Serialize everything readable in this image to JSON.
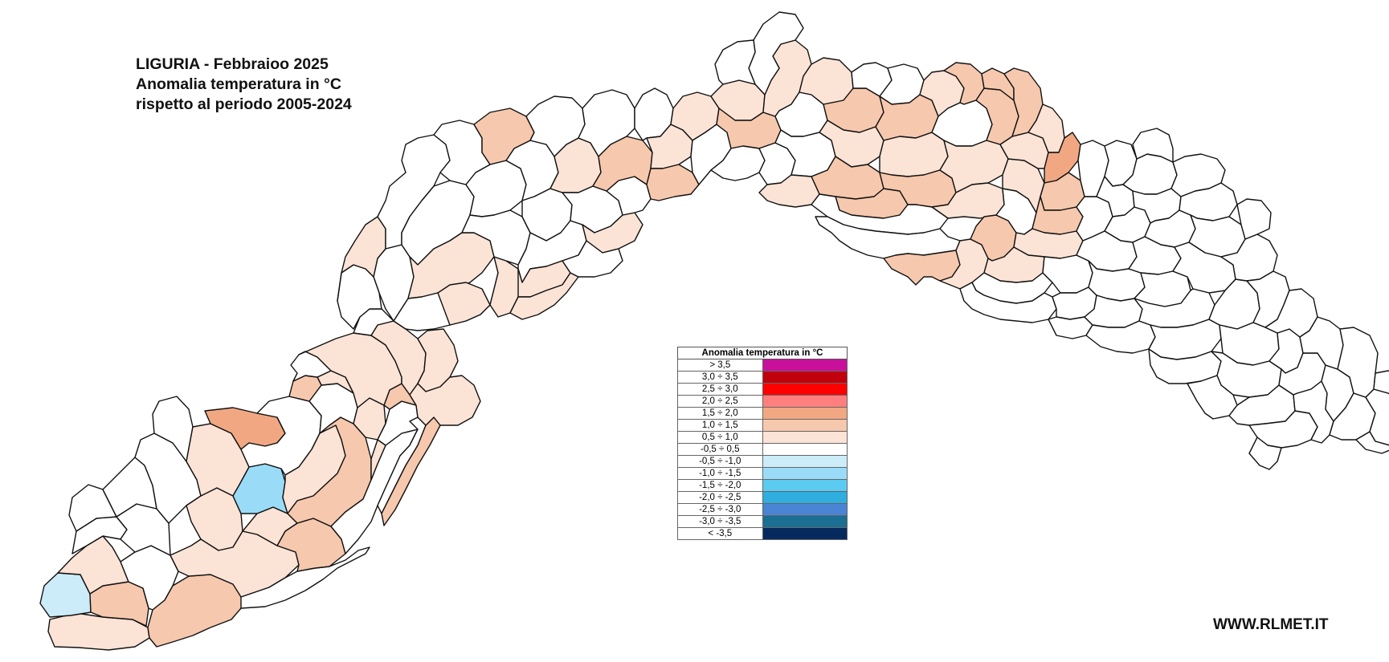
{
  "title": {
    "line1": "LIGURIA - Febbraioo 2025",
    "line2": "Anomalia temperatura in °C",
    "line3": "rispetto al periodo 2005-2024"
  },
  "legend": {
    "header": "Anomalia temperatura in °C",
    "classes": [
      {
        "label": "> 3,5",
        "color": "#c8109c"
      },
      {
        "label": "3,0 ÷ 3,5",
        "color": "#c0000c"
      },
      {
        "label": "2,5 ÷ 3,0",
        "color": "#ff0000"
      },
      {
        "label": "2,0 ÷ 2,5",
        "color": "#ff7f7f"
      },
      {
        "label": "1,5 ÷ 2,0",
        "color": "#f1a882"
      },
      {
        "label": "1,0 ÷ 1,5",
        "color": "#f6c8ad"
      },
      {
        "label": "0,5 ÷ 1,0",
        "color": "#fbe3d6"
      },
      {
        "label": "-0,5 ÷ 0,5",
        "color": "#ffffff"
      },
      {
        "label": "-0,5 ÷ -1,0",
        "color": "#ccecfa"
      },
      {
        "label": "-1,0 ÷ -1,5",
        "color": "#9adcf8"
      },
      {
        "label": "-1,5 ÷ -2,0",
        "color": "#5ccbf2"
      },
      {
        "label": "-2,0 ÷ -2,5",
        "color": "#2faedf"
      },
      {
        "label": "-2,5 ÷ -3,0",
        "color": "#4a84d4"
      },
      {
        "label": "-3,0 ÷ -3,5",
        "color": "#1a6f92"
      },
      {
        "label": "< -3,5",
        "color": "#062a5e"
      }
    ]
  },
  "site": "WWW.RLMET.IT",
  "class_colors": {
    "neutral": "#ffffff",
    "c05_10": "#fbe3d6",
    "c10_15": "#f6c8ad",
    "c15_20": "#f1a882",
    "cm05_10": "#ccecfa",
    "cm10_15": "#9adcf8"
  },
  "municipality_anomaly_classes": [
    "c05_10",
    "cm05_10",
    "c10_15",
    "c05_10",
    "neutral",
    "neutral",
    "neutral",
    "neutral",
    "neutral",
    "neutral",
    "neutral",
    "c05_10",
    "c10_15",
    "c05_10",
    "neutral",
    "c10_15",
    "c05_10",
    "c05_10",
    "cm10_15",
    "c15_20",
    "neutral",
    "c05_10",
    "c10_15",
    "neutral",
    "c05_10",
    "c05_10",
    "c10_15",
    "neutral",
    "neutral",
    "c10_15",
    "c05_10",
    "neutral",
    "c10_15",
    "neutral",
    "c05_10",
    "c05_10",
    "c05_10",
    "c05_10",
    "neutral",
    "neutral",
    "neutral",
    "c05_10",
    "neutral",
    "neutral",
    "c05_10",
    "neutral",
    "c05_10",
    "c05_10",
    "neutral",
    "neutral",
    "neutral",
    "neutral",
    "c10_15",
    "neutral",
    "neutral",
    "c05_10",
    "c05_10",
    "c05_10",
    "neutral",
    "neutral",
    "c05_10",
    "neutral",
    "neutral",
    "c10_15",
    "neutral",
    "neutral",
    "c05_10",
    "c10_15",
    "c05_10",
    "neutral",
    "c05_10",
    "c10_15",
    "neutral",
    "neutral",
    "c05_10",
    "neutral",
    "neutral",
    "neutral",
    "neutral",
    "c05_10",
    "c10_15",
    "c05_10",
    "c10_15",
    "c05_10",
    "c10_15",
    "neutral",
    "neutral",
    "c10_15",
    "c05_10",
    "c10_15",
    "c05_10",
    "c10_15",
    "neutral",
    "c05_10",
    "c05_10",
    "neutral",
    "neutral",
    "c10_15",
    "c05_10",
    "c10_15",
    "neutral",
    "c05_10",
    "c05_10",
    "c10_15",
    "c10_15",
    "c10_15",
    "c05_10",
    "c15_20",
    "c10_15",
    "c10_15",
    "c05_10",
    "c05_10",
    "neutral"
  ]
}
